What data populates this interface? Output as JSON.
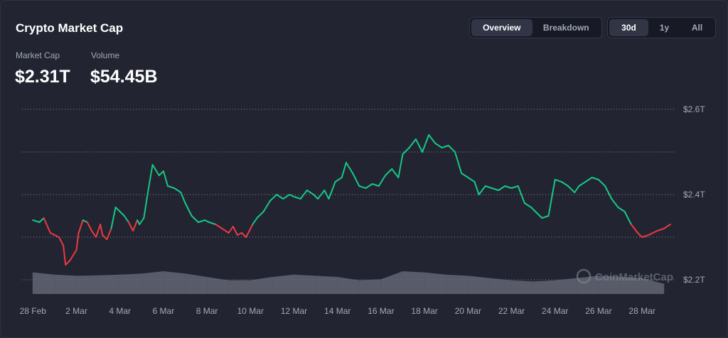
{
  "header": {
    "title": "Crypto Market Cap",
    "view_tabs": [
      {
        "label": "Overview",
        "active": true
      },
      {
        "label": "Breakdown",
        "active": false
      }
    ],
    "range_tabs": [
      {
        "label": "30d",
        "active": true
      },
      {
        "label": "1y",
        "active": false
      },
      {
        "label": "All",
        "active": false
      }
    ]
  },
  "stats": {
    "market_cap_label": "Market Cap",
    "market_cap_value": "$2.31T",
    "volume_label": "Volume",
    "volume_value": "$54.45B"
  },
  "watermark": "CoinMarketCap",
  "colors": {
    "background": "#222531",
    "up": "#16c784",
    "down": "#ea3943",
    "volume": "#6b6e7c",
    "grid": "#8a8d98",
    "axis_text": "#a1a7bb"
  },
  "chart_data": {
    "type": "line",
    "title": "",
    "xlabel": "",
    "ylabel": "",
    "x_ticks": [
      "28 Feb",
      "2 Mar",
      "4 Mar",
      "6 Mar",
      "8 Mar",
      "10 Mar",
      "12 Mar",
      "14 Mar",
      "16 Mar",
      "18 Mar",
      "20 Mar",
      "22 Mar",
      "24 Mar",
      "26 Mar",
      "28 Mar"
    ],
    "y_ticks": [
      "$2.2T",
      "$2.4T",
      "$2.6T"
    ],
    "y_tick_values": [
      2.2,
      2.4,
      2.6
    ],
    "ylim": [
      2.14,
      2.6
    ],
    "xlim": [
      -0.5,
      29.5
    ],
    "grid": true,
    "baseline": 2.33,
    "series": [
      {
        "x": [
          0,
          0.3,
          0.5,
          0.8,
          1,
          1.2,
          1.4,
          1.5,
          1.7,
          2,
          2.1,
          2.3,
          2.5,
          2.7,
          2.9,
          3.1,
          3.2,
          3.4,
          3.6,
          3.8,
          4,
          4.2,
          4.4,
          4.6,
          4.8,
          4.9,
          5.1,
          5.3,
          5.5,
          5.8,
          6,
          6.2,
          6.5,
          6.8,
          7,
          7.3,
          7.6,
          7.9,
          8.1,
          8.4,
          8.7,
          9,
          9.2,
          9.4,
          9.6,
          9.8,
          10.1,
          10.3,
          10.6,
          10.9,
          11.2,
          11.5,
          11.8,
          12,
          12.3,
          12.6,
          12.9,
          13.1,
          13.4,
          13.6,
          13.9,
          14.2,
          14.4,
          14.7,
          15,
          15.3,
          15.6,
          15.9,
          16.2,
          16.5,
          16.8,
          17,
          17.3,
          17.6,
          17.9,
          18.2,
          18.5,
          18.8,
          19.1,
          19.4,
          19.7,
          20,
          20.3,
          20.5,
          20.8,
          21.1,
          21.4,
          21.7,
          22,
          22.3,
          22.6,
          22.9,
          23.2,
          23.4,
          23.7,
          24,
          24.3,
          24.6,
          24.9,
          25.1,
          25.4,
          25.7,
          26,
          26.3,
          26.6,
          26.9,
          27.2,
          27.5,
          27.8,
          28,
          28.3,
          28.5,
          28.7,
          29,
          29.3
        ],
        "values": [
          2.34,
          2.335,
          2.345,
          2.31,
          2.305,
          2.3,
          2.28,
          2.235,
          2.245,
          2.27,
          2.31,
          2.34,
          2.335,
          2.315,
          2.3,
          2.33,
          2.305,
          2.295,
          2.32,
          2.37,
          2.36,
          2.35,
          2.335,
          2.315,
          2.34,
          2.33,
          2.345,
          2.41,
          2.47,
          2.445,
          2.455,
          2.42,
          2.415,
          2.405,
          2.38,
          2.35,
          2.335,
          2.34,
          2.335,
          2.33,
          2.32,
          2.31,
          2.325,
          2.305,
          2.31,
          2.3,
          2.33,
          2.345,
          2.36,
          2.385,
          2.4,
          2.39,
          2.4,
          2.395,
          2.39,
          2.41,
          2.4,
          2.39,
          2.41,
          2.39,
          2.43,
          2.44,
          2.475,
          2.45,
          2.42,
          2.415,
          2.425,
          2.42,
          2.445,
          2.46,
          2.44,
          2.495,
          2.51,
          2.53,
          2.5,
          2.54,
          2.52,
          2.51,
          2.515,
          2.5,
          2.45,
          2.44,
          2.43,
          2.4,
          2.42,
          2.415,
          2.41,
          2.42,
          2.415,
          2.42,
          2.38,
          2.37,
          2.355,
          2.345,
          2.35,
          2.435,
          2.43,
          2.42,
          2.405,
          2.42,
          2.43,
          2.44,
          2.435,
          2.42,
          2.39,
          2.37,
          2.36,
          2.33,
          2.31,
          2.3,
          2.305,
          2.31,
          2.315,
          2.32,
          2.33
        ]
      },
      {
        "name": "Volume",
        "x": [
          0,
          1,
          2,
          3,
          4,
          5,
          6,
          7,
          8,
          9,
          10,
          11,
          12,
          13,
          14,
          15,
          16,
          17,
          18,
          19,
          20,
          21,
          22,
          23,
          24,
          25,
          26,
          27,
          28,
          29
        ],
        "values": [
          0.95,
          0.85,
          0.8,
          0.82,
          0.85,
          0.9,
          1.0,
          0.9,
          0.75,
          0.6,
          0.6,
          0.75,
          0.85,
          0.8,
          0.75,
          0.6,
          0.65,
          1.0,
          0.95,
          0.85,
          0.8,
          0.7,
          0.6,
          0.55,
          0.6,
          0.7,
          0.8,
          0.75,
          0.7,
          0.45
        ]
      }
    ]
  }
}
